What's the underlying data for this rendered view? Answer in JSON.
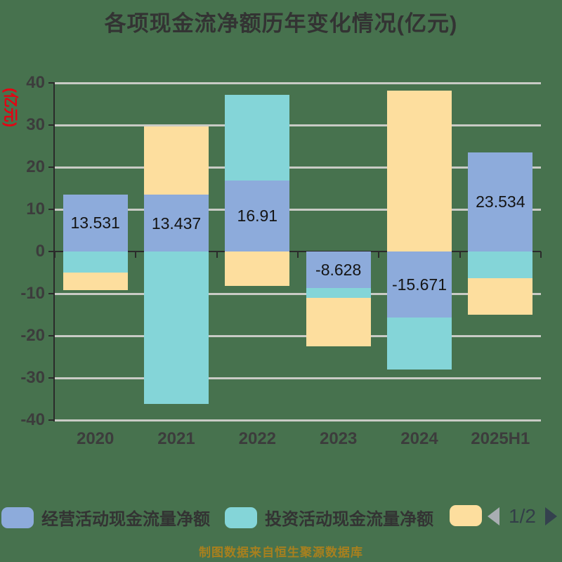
{
  "title": "各项现金流净额历年变化情况(亿元)",
  "y_axis_name": "(亿元)",
  "source_note": "制图数据来自恒生聚源数据库",
  "colors": {
    "background": "#47724E",
    "operating": "#8DABDB",
    "investing": "#84D5D8",
    "financing": "#FDDE9E",
    "gridline": "#C9CBC5",
    "axis": "#2B2B2B",
    "tick_label": "#3C3C3C",
    "data_label": "#141414",
    "title_text": "#333333",
    "y_name_text": "#E60012",
    "source_text": "#A8801E",
    "pager_left_arrow": "#A9AEB2",
    "pager_right_arrow": "#34414E",
    "pager_text": "#333E48"
  },
  "chart_data": {
    "type": "bar",
    "stacked": true,
    "grid": true,
    "legend_position": "bottom",
    "categories": [
      "2020",
      "2021",
      "2022",
      "2023",
      "2024",
      "2025H1"
    ],
    "series": [
      {
        "name": "经营活动现金流量净额",
        "color_key": "operating",
        "values": [
          13.531,
          13.437,
          16.91,
          -8.628,
          -15.671,
          23.534
        ],
        "labels": [
          "13.531",
          "13.437",
          "16.91",
          "-8.628",
          "-15.671",
          "23.534"
        ]
      },
      {
        "name": "投资活动现金流量净额",
        "color_key": "investing",
        "values": [
          -5.0,
          -36.1,
          20.3,
          -2.4,
          -12.4,
          -6.3
        ]
      },
      {
        "name": "",
        "color_key": "financing",
        "values": [
          -4.2,
          16.3,
          -8.2,
          -11.5,
          38.2,
          -8.7
        ]
      }
    ],
    "ylim": [
      -40,
      40
    ],
    "y_ticks": [
      40,
      30,
      20,
      10,
      0,
      -10,
      -20,
      -30,
      -40
    ],
    "xlabel": "",
    "ylabel": "(亿元)"
  },
  "legend": {
    "items": [
      {
        "label": "经营活动现金流量净额",
        "color_key": "operating"
      },
      {
        "label": "投资活动现金流量净额",
        "color_key": "investing"
      },
      {
        "label": "",
        "color_key": "financing"
      }
    ],
    "pager": {
      "label": "1/2"
    }
  }
}
